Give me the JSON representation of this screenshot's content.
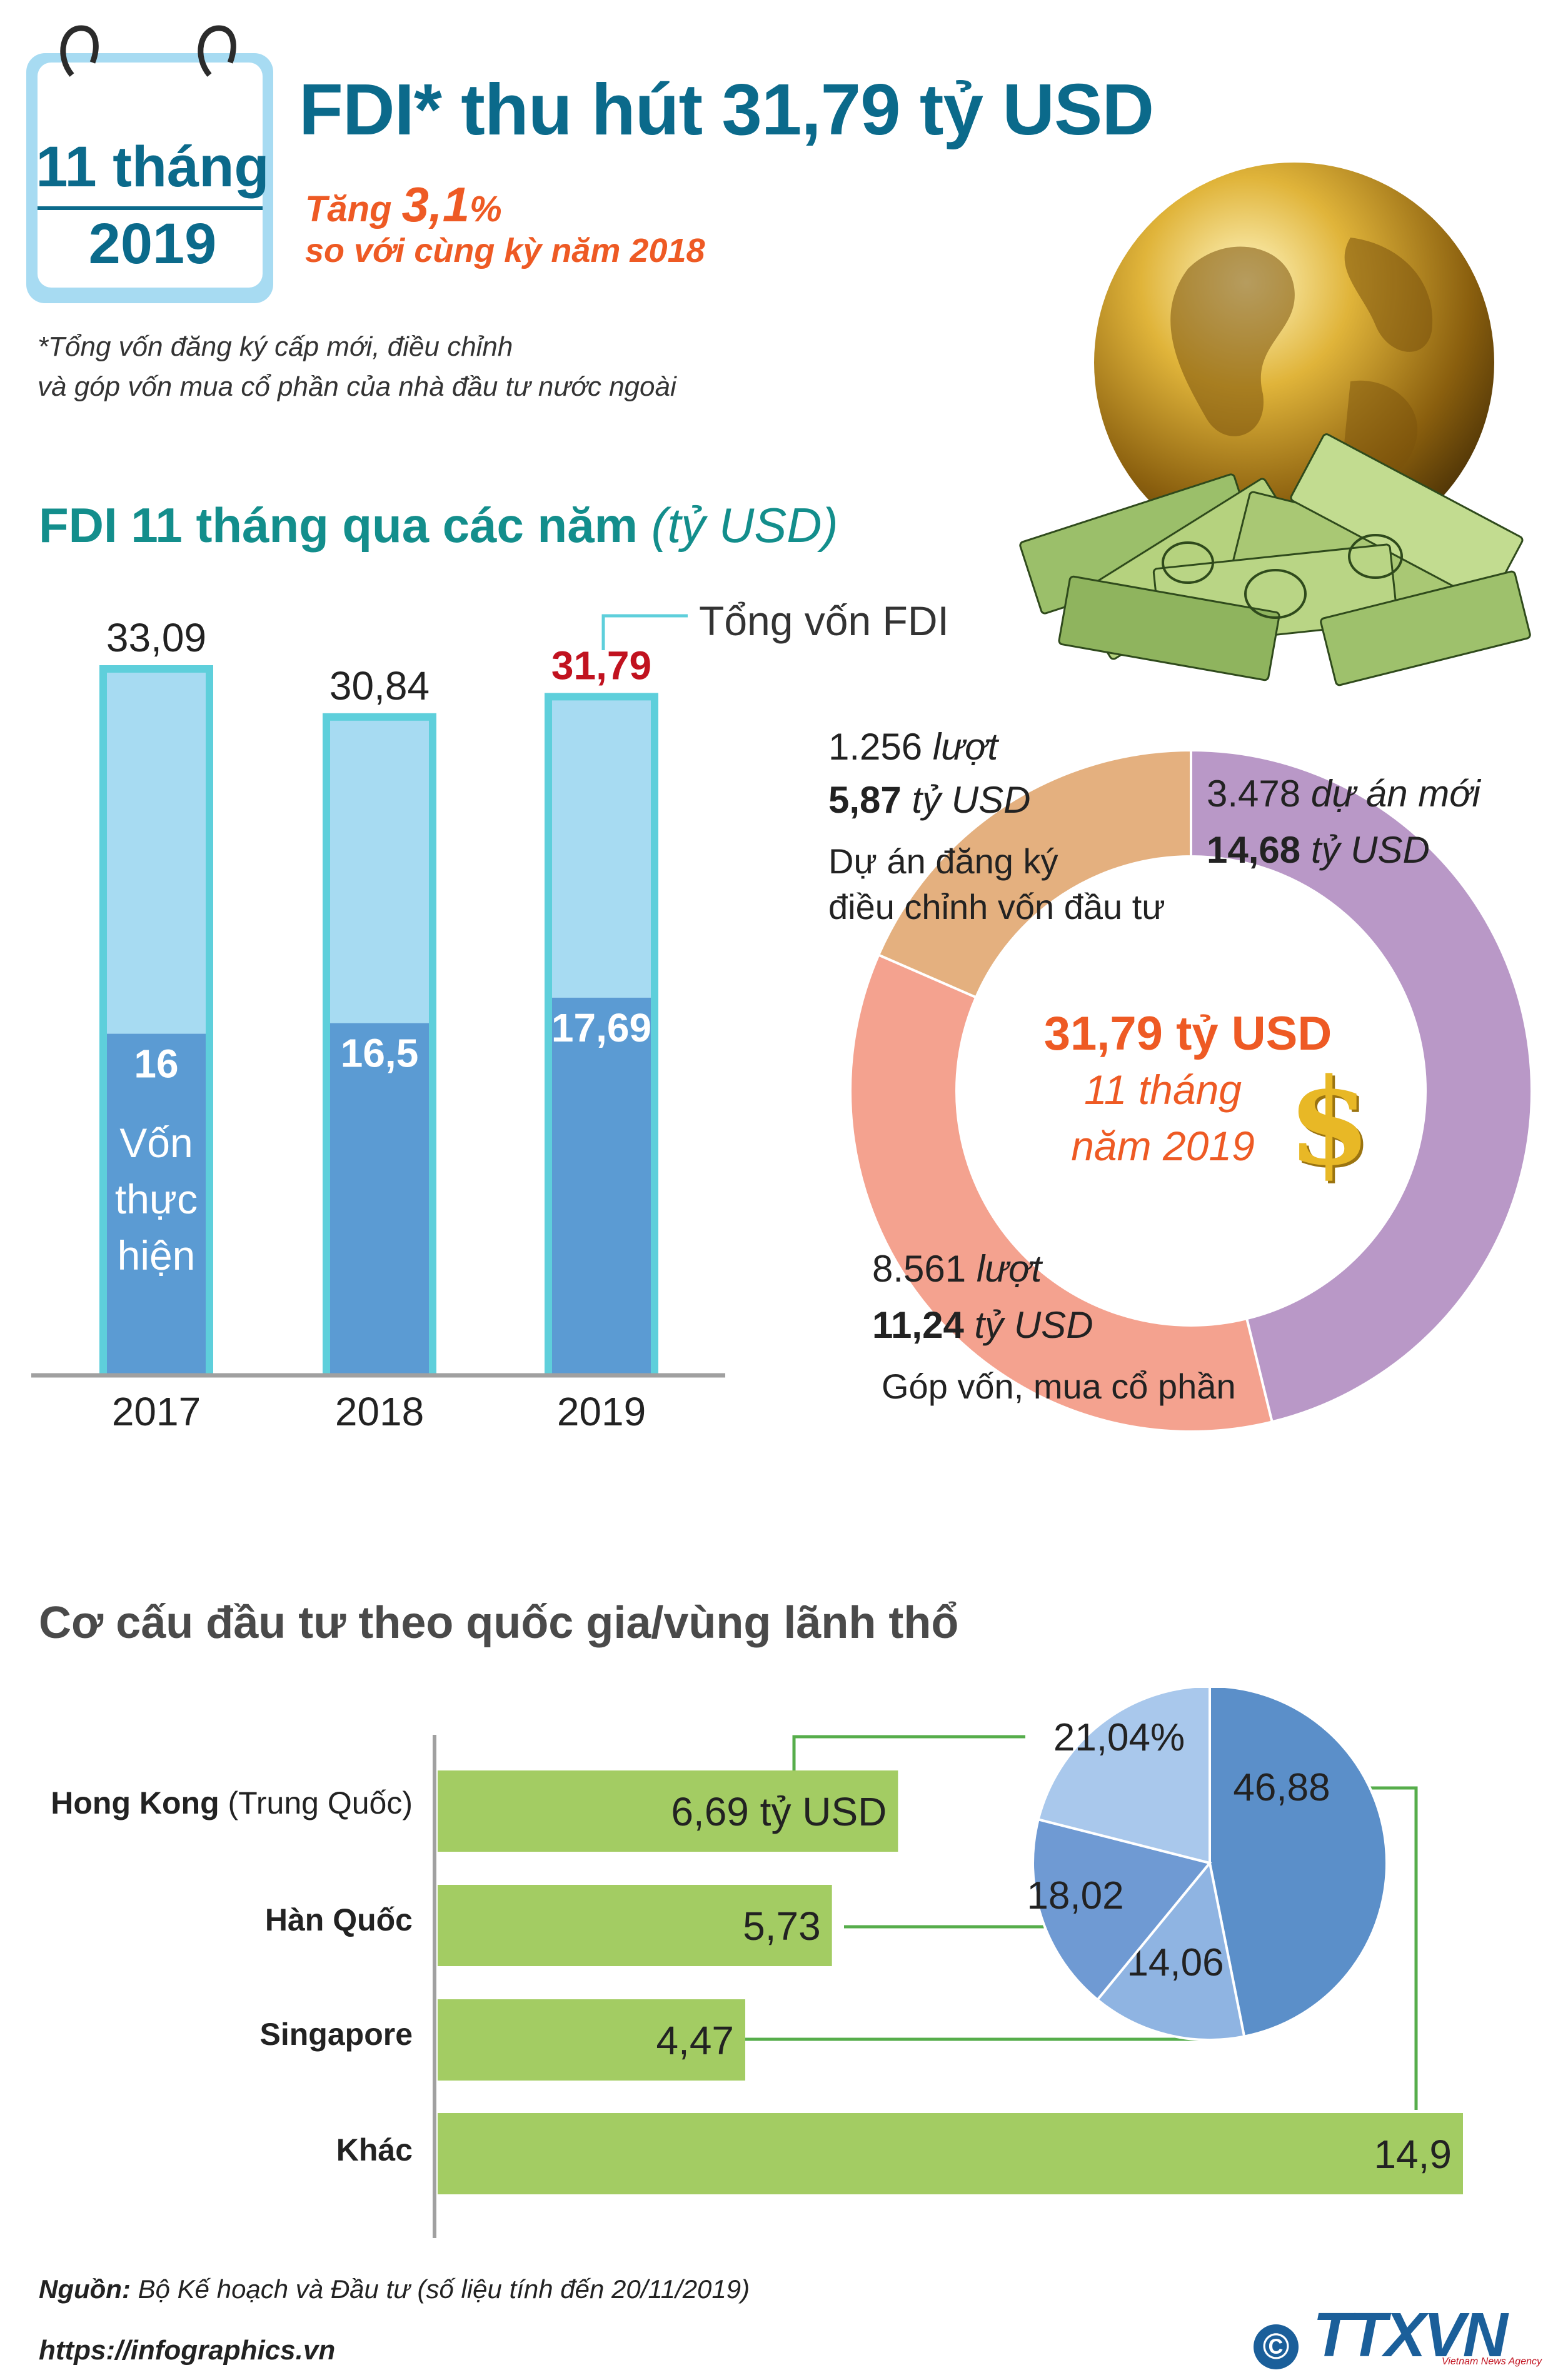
{
  "header": {
    "calendar_line1": "11 tháng",
    "calendar_line2": "2019",
    "title": "FDI* thu hút 31,79 tỷ USD",
    "growth_prefix": "Tăng",
    "growth_value": "3,1",
    "growth_unit": "%",
    "growth_suffix": "so với cùng kỳ năm 2018",
    "footnote_line1": "*Tổng vốn đăng ký cấp mới, điều chỉnh",
    "footnote_line2": "và góp vốn mua cổ phần của nhà đầu tư nước ngoài"
  },
  "colors": {
    "title": "#0b6a8b",
    "teal_heading": "#138e8c",
    "orange": "#ee5a24",
    "red_value": "#c1121f",
    "bar_outline": "#5ecfdb",
    "bar_total": "#a7dbf2",
    "bar_realized": "#5b9bd3",
    "green_bar": "#a3cc63",
    "green_line": "#56ad4b",
    "donut_new": "#b998c7",
    "donut_adjust": "#e4b07f",
    "donut_shares": "#f4a28f",
    "gold": "#d4a017"
  },
  "icons": [
    "calendar-icon",
    "globe-money-illustration",
    "dollar-sign-icon",
    "copyright-icon",
    "ttxvn-logo"
  ],
  "chart_data": [
    {
      "type": "bar",
      "title": "FDI 11 tháng qua các năm",
      "title_unit": "(tỷ USD)",
      "categories": [
        "2017",
        "2018",
        "2019"
      ],
      "series": [
        {
          "name": "Tổng vốn FDI",
          "values": [
            33.09,
            30.84,
            31.79
          ],
          "labels": [
            "33,09",
            "30,84",
            "31,79"
          ]
        },
        {
          "name": "Vốn thực hiện",
          "values": [
            16,
            16.5,
            17.69
          ],
          "labels": [
            "16",
            "16,5",
            "17,69"
          ]
        }
      ],
      "ylim": [
        0,
        33.09
      ],
      "legend_total": "Tổng vốn FDI",
      "legend_realized_lines": [
        "Vốn",
        "thực",
        "hiện"
      ]
    },
    {
      "type": "pie",
      "variant": "donut",
      "center_value": "31,79 tỷ USD",
      "center_line2": "11 tháng",
      "center_line3": "năm 2019",
      "slices": [
        {
          "key": "new",
          "value": 14.68,
          "count": "3.478",
          "count_suffix": "dự án mới",
          "amount": "14,68",
          "unit": "tỷ USD",
          "label": ""
        },
        {
          "key": "shares",
          "value": 11.24,
          "count": "8.561",
          "count_suffix": "lượt",
          "amount": "11,24",
          "unit": "tỷ USD",
          "label": "Góp vốn, mua cổ phần"
        },
        {
          "key": "adjust",
          "value": 5.87,
          "count": "1.256",
          "count_suffix": "lượt",
          "amount": "5,87",
          "unit": "tỷ USD",
          "label_line1": "Dự án đăng ký",
          "label_line2": "điều chỉnh vốn đầu tư"
        }
      ]
    },
    {
      "type": "bar",
      "orientation": "horizontal",
      "title": "Cơ cấu đầu tư theo quốc gia/vùng lãnh thổ",
      "categories": [
        "Hong Kong",
        "Hàn Quốc",
        "Singapore",
        "Khác"
      ],
      "category_suffixes": [
        "(Trung Quốc)",
        "",
        "",
        ""
      ],
      "values": [
        6.69,
        5.73,
        4.47,
        14.9
      ],
      "value_labels": [
        "6,69 tỷ USD",
        "5,73",
        "4,47",
        "14,9"
      ],
      "xlim": [
        0,
        14.9
      ]
    },
    {
      "type": "pie",
      "title": "",
      "unit": "%",
      "slices": [
        {
          "name": "Khác",
          "value": 46.88,
          "label": "46,88"
        },
        {
          "name": "Singapore",
          "value": 14.06,
          "label": "14,06"
        },
        {
          "name": "Hàn Quốc",
          "value": 18.02,
          "label": "18,02"
        },
        {
          "name": "Hong Kong",
          "value": 21.04,
          "label": "21,04%"
        }
      ]
    }
  ],
  "footer": {
    "source_label": "Nguồn:",
    "source_text": "Bộ Kế hoạch và Đầu tư (số liệu tính đến 20/11/2019)",
    "url": "https://infographics.vn",
    "copyright_symbol": "©",
    "logo_text": "TTXVN",
    "logo_subtext": "Vietnam News Agency"
  }
}
